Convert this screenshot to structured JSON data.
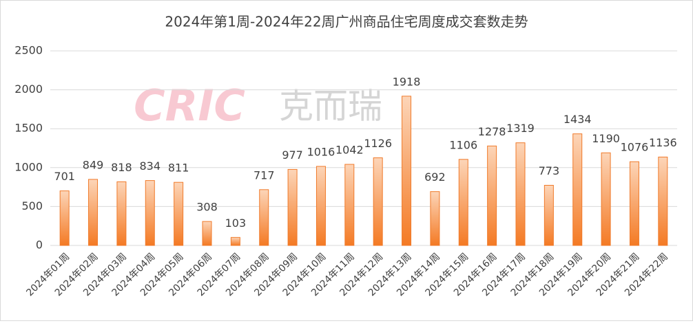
{
  "chart_data": {
    "type": "bar",
    "title": "2024年第1周-2024年22周广州商品住宅周度成交套数走势",
    "watermark_logo": "CRIC",
    "watermark_text": "克而瑞",
    "categories": [
      "2024年01周",
      "2024年02周",
      "2024年03周",
      "2024年04周",
      "2024年05周",
      "2024年06周",
      "2024年07周",
      "2024年08周",
      "2024年09周",
      "2024年10周",
      "2024年11周",
      "2024年12周",
      "2024年13周",
      "2024年14周",
      "2024年15周",
      "2024年16周",
      "2024年17周",
      "2024年18周",
      "2024年19周",
      "2024年20周",
      "2024年21周",
      "2024年22周"
    ],
    "values": [
      701,
      849,
      818,
      834,
      811,
      308,
      103,
      717,
      977,
      1016,
      1042,
      1126,
      1918,
      692,
      1106,
      1278,
      1319,
      773,
      1434,
      1190,
      1076,
      1136
    ],
    "color": "#f07a2a",
    "ylim": [
      0,
      2500
    ],
    "yticks": [
      0,
      500,
      1000,
      1500,
      2000,
      2500
    ],
    "grid": true
  }
}
